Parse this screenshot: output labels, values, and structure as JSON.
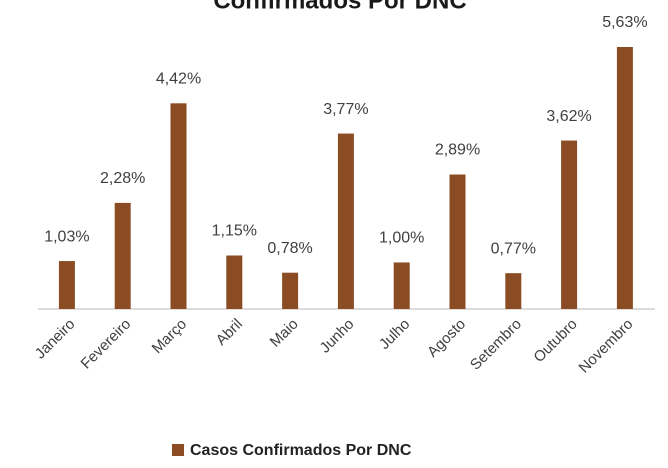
{
  "chart_data": {
    "type": "bar",
    "title": "Confirmados Por DNC",
    "categories": [
      "Janeiro",
      "Fevereiro",
      "Março",
      "Abril",
      "Maio",
      "Junho",
      "Julho",
      "Agosto",
      "Setembro",
      "Outubro",
      "Novembro"
    ],
    "series": [
      {
        "name": "Casos Confirmados Por DNC",
        "color": "#8b4c24",
        "values": [
          1.03,
          2.28,
          4.42,
          1.15,
          0.78,
          3.77,
          1.0,
          2.89,
          0.77,
          3.62,
          5.63
        ],
        "value_labels": [
          "1,03%",
          "2,28%",
          "4,42%",
          "1,15%",
          "0,78%",
          "3,77%",
          "1,00%",
          "2,89%",
          "0,77%",
          "3,62%",
          "5,63%"
        ]
      }
    ]
  }
}
